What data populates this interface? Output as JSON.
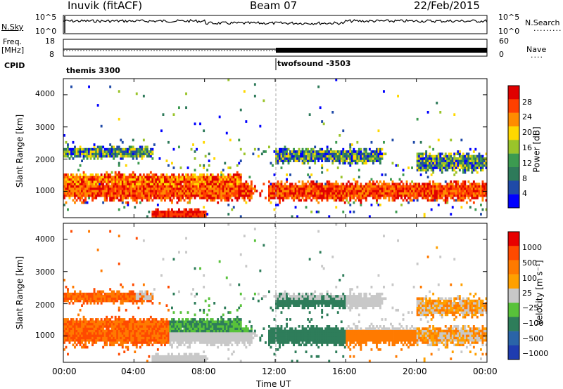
{
  "header": {
    "site": "Inuvik (fitACF)",
    "beam": "Beam 07",
    "date": "22/Feb/2015"
  },
  "strips": {
    "nsky_label": "N.Sky",
    "nsky_ticks": [
      "10^5",
      "10^0"
    ],
    "nsearch_label": "N.Search",
    "nsearch_ticks": [
      "10^5",
      "10^0"
    ],
    "freq_label_1": "Freq.",
    "freq_label_2": "[MHz]",
    "freq_ticks": [
      "18",
      "8"
    ],
    "nave_label": "Nave",
    "nave_ticks": [
      "60",
      "0"
    ],
    "cpid_label": "CPID",
    "cpid_segments": [
      "themis 3300",
      "twofsound -3503"
    ]
  },
  "colors": {
    "power": [
      "#0000ff",
      "#1f4aa8",
      "#2e7a5a",
      "#3c9a50",
      "#9ac42a",
      "#ffd800",
      "#ff8c00",
      "#ff4000",
      "#e00000"
    ],
    "velocity": [
      "#1f3cb0",
      "#2a64a8",
      "#2e7d5a",
      "#58c23a",
      "#c8c8c8",
      "#ffa000",
      "#ff7a00",
      "#ff4a00",
      "#e80000"
    ]
  },
  "chart_data": [
    {
      "type": "heatmap",
      "quantity": "power",
      "ylabel": "Slant Range [km]",
      "xlabel": "",
      "ylim": [
        180,
        4500
      ],
      "yticks": [
        "1000",
        "2000",
        "3000",
        "4000"
      ],
      "colorbar_label": "Power [dB]",
      "colorbar_ticks": [
        "28",
        "24",
        "20",
        "16",
        "12",
        "8",
        "4"
      ]
    },
    {
      "type": "heatmap",
      "quantity": "velocity",
      "ylabel": "Slant Range [km]",
      "xlabel": "Time UT",
      "ylim": [
        180,
        4500
      ],
      "yticks": [
        "1000",
        "2000",
        "3000",
        "4000"
      ],
      "xticks": [
        "00:00",
        "04:00",
        "08:00",
        "12:00",
        "16:00",
        "20:00",
        "00:00"
      ],
      "colorbar_label": "Velocity [m s⁻¹]",
      "colorbar_ticks": [
        "1000",
        "500",
        "100",
        "25",
        "−25",
        "−100",
        "−500",
        "−1000"
      ]
    }
  ]
}
